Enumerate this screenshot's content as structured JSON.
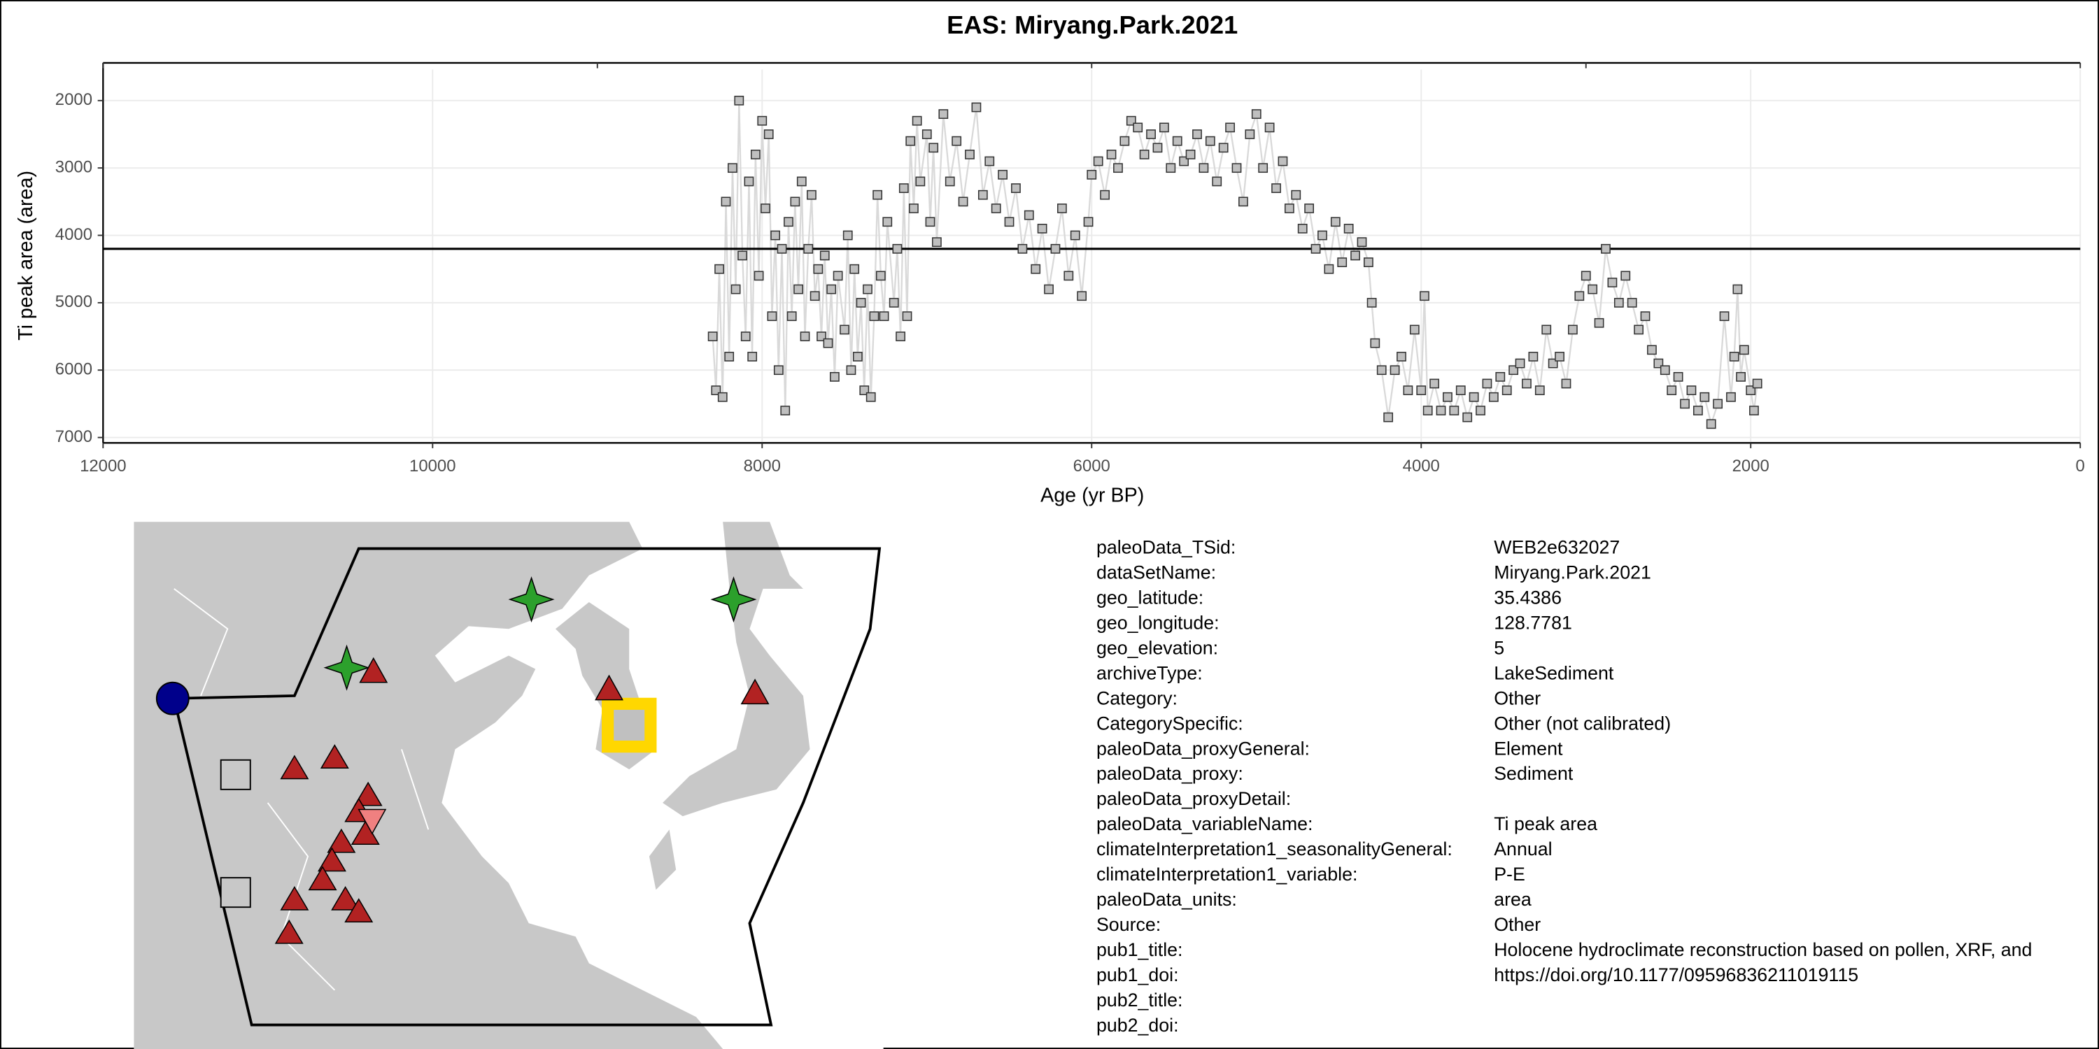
{
  "chart_data": {
    "type": "scatter-line",
    "title": "EAS: Miryang.Park.2021",
    "xlabel": "Age (yr BP)",
    "ylabel": "Ti peak area (area)",
    "xlim": [
      0,
      12000
    ],
    "xreverse": true,
    "xticks": [
      12000,
      10000,
      8000,
      6000,
      4000,
      2000,
      0
    ],
    "xticks_top": [
      12000,
      9000,
      6000,
      3000,
      0
    ],
    "ylim": [
      1540,
      7080
    ],
    "yreverse": true,
    "yticks": [
      2000,
      3000,
      4000,
      5000,
      6000,
      7000
    ],
    "grid": true,
    "hline": 4200,
    "color": "#bfbfbf",
    "line_color": "#d9d9d9",
    "x": [
      8300,
      8280,
      8260,
      8240,
      8220,
      8200,
      8180,
      8160,
      8140,
      8120,
      8100,
      8080,
      8060,
      8040,
      8020,
      8000,
      7980,
      7960,
      7940,
      7920,
      7900,
      7880,
      7860,
      7840,
      7820,
      7800,
      7780,
      7760,
      7740,
      7720,
      7700,
      7680,
      7660,
      7640,
      7620,
      7600,
      7580,
      7560,
      7540,
      7500,
      7480,
      7460,
      7440,
      7420,
      7400,
      7380,
      7360,
      7340,
      7320,
      7300,
      7280,
      7260,
      7240,
      7200,
      7180,
      7160,
      7140,
      7120,
      7100,
      7080,
      7060,
      7040,
      7000,
      6980,
      6960,
      6940,
      6900,
      6860,
      6820,
      6780,
      6740,
      6700,
      6660,
      6620,
      6580,
      6540,
      6500,
      6460,
      6420,
      6380,
      6340,
      6300,
      6260,
      6220,
      6180,
      6140,
      6100,
      6060,
      6020,
      6000,
      5960,
      5920,
      5880,
      5840,
      5800,
      5760,
      5720,
      5680,
      5640,
      5600,
      5560,
      5520,
      5480,
      5440,
      5400,
      5360,
      5320,
      5280,
      5240,
      5200,
      5160,
      5120,
      5080,
      5040,
      5000,
      4960,
      4920,
      4880,
      4840,
      4800,
      4760,
      4720,
      4680,
      4640,
      4600,
      4560,
      4520,
      4480,
      4440,
      4400,
      4360,
      4320,
      4300,
      4280,
      4240,
      4200,
      4160,
      4120,
      4080,
      4040,
      4000,
      3980,
      3960,
      3920,
      3880,
      3840,
      3800,
      3760,
      3720,
      3680,
      3640,
      3600,
      3560,
      3520,
      3480,
      3440,
      3400,
      3360,
      3320,
      3280,
      3240,
      3200,
      3160,
      3120,
      3080,
      3040,
      3000,
      2960,
      2920,
      2880,
      2840,
      2800,
      2760,
      2720,
      2680,
      2640,
      2600,
      2560,
      2520,
      2480,
      2440,
      2400,
      2360,
      2320,
      2280,
      2240,
      2200,
      2160,
      2120,
      2100,
      2080,
      2060,
      2040,
      2000,
      1980,
      1960
    ],
    "values": [
      5500,
      6300,
      4500,
      6400,
      3500,
      5800,
      3000,
      4800,
      2000,
      4300,
      5500,
      3200,
      5800,
      2800,
      4600,
      2300,
      3600,
      2500,
      5200,
      4000,
      6000,
      4200,
      6600,
      3800,
      5200,
      3500,
      4800,
      3200,
      5500,
      4200,
      3400,
      4900,
      4500,
      5500,
      4300,
      5600,
      4800,
      6100,
      4600,
      5400,
      4000,
      6000,
      4500,
      5800,
      5000,
      6300,
      4800,
      6400,
      5200,
      3400,
      4600,
      5200,
      3800,
      5000,
      4200,
      5500,
      3300,
      5200,
      2600,
      3600,
      2300,
      3200,
      2500,
      3800,
      2700,
      4100,
      2200,
      3200,
      2600,
      3500,
      2800,
      2100,
      3400,
      2900,
      3600,
      3100,
      3800,
      3300,
      4200,
      3700,
      4500,
      3900,
      4800,
      4200,
      3600,
      4600,
      4000,
      4900,
      3800,
      3100,
      2900,
      3400,
      2800,
      3000,
      2600,
      2300,
      2400,
      2800,
      2500,
      2700,
      2400,
      3000,
      2600,
      2900,
      2800,
      2500,
      3000,
      2600,
      3200,
      2700,
      2400,
      3000,
      3500,
      2500,
      2200,
      3000,
      2400,
      3300,
      2900,
      3600,
      3400,
      3900,
      3600,
      4200,
      4000,
      4500,
      3800,
      4400,
      3900,
      4300,
      4100,
      4400,
      5000,
      5600,
      6000,
      6700,
      6000,
      5800,
      6300,
      5400,
      6300,
      4900,
      6600,
      6200,
      6600,
      6400,
      6600,
      6300,
      6700,
      6400,
      6600,
      6200,
      6400,
      6100,
      6300,
      6000,
      5900,
      6200,
      5800,
      6300,
      5400,
      5900,
      5800,
      6200,
      5400,
      4900,
      4600,
      4800,
      5300,
      4200,
      4700,
      5000,
      4600,
      5000,
      5400,
      5200,
      5700,
      5900,
      6000,
      6300,
      6100,
      6500,
      6300,
      6600,
      6400,
      6800,
      6500,
      5200,
      6400,
      5800,
      4800,
      6100,
      5700,
      6300,
      6600,
      6200
    ]
  },
  "table": {
    "rows": [
      [
        "paleoData_TSid:",
        "WEB2e632027"
      ],
      [
        "dataSetName:",
        "Miryang.Park.2021"
      ],
      [
        "geo_latitude:",
        "35.4386"
      ],
      [
        "geo_longitude:",
        "128.7781"
      ],
      [
        "geo_elevation:",
        "5"
      ],
      [
        "archiveType:",
        "LakeSediment"
      ],
      [
        "Category:",
        "Other"
      ],
      [
        "CategorySpecific:",
        "Other (not calibrated)"
      ],
      [
        "paleoData_proxyGeneral:",
        "Element"
      ],
      [
        "paleoData_proxy:",
        "Sediment"
      ],
      [
        "paleoData_proxyDetail:"
      ],
      [
        "paleoData_variableName:",
        "Ti peak area"
      ],
      [
        "climateInterpretation1_seasonalityGeneral:",
        "Annual"
      ],
      [
        "climateInterpretation1_variable:",
        "P-E"
      ],
      [
        "paleoData_units:",
        "area"
      ],
      [
        "Source:",
        "Other"
      ],
      [
        "pub1_title:",
        "Holocene hydroclimate reconstruction based on pollen, XRF, and"
      ],
      [
        "pub1_doi:",
        "https://doi.org/10.1177/09596836211019115"
      ],
      [
        "pub2_title:"
      ],
      [
        "pub2_doi:"
      ]
    ]
  }
}
